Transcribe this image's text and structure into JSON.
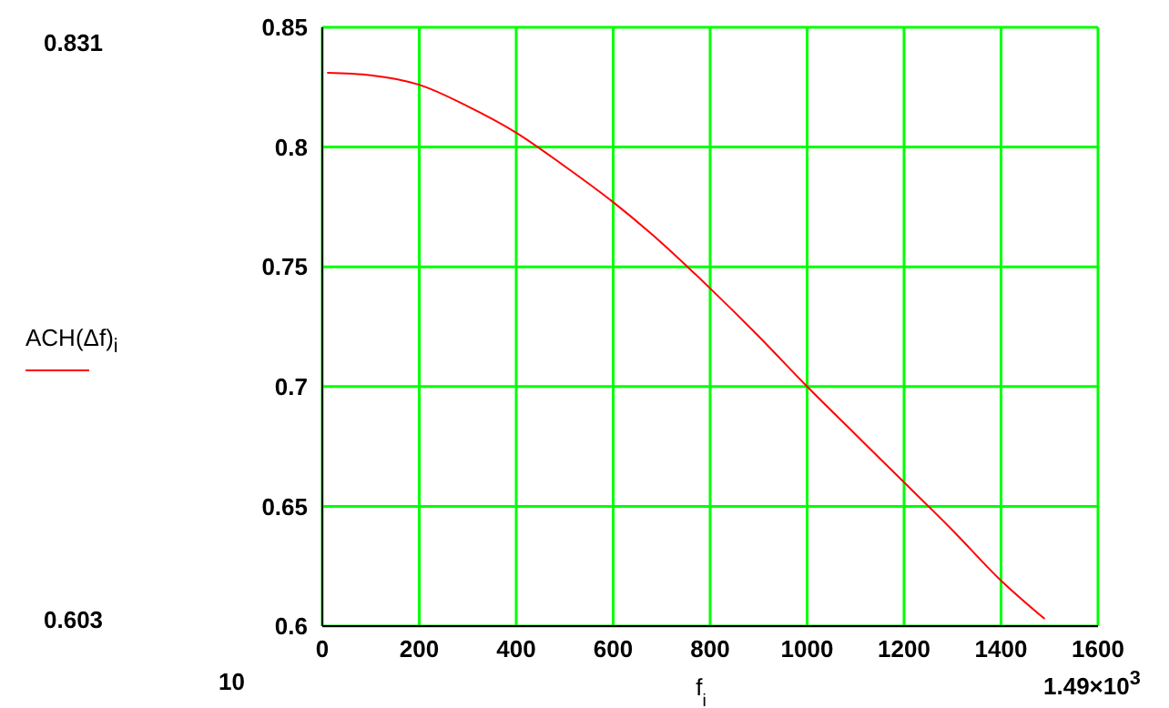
{
  "chart_data": {
    "type": "line",
    "xlabel": "f$_{i}$",
    "x": [
      10,
      100,
      200,
      300,
      400,
      500,
      600,
      700,
      800,
      900,
      1000,
      1100,
      1200,
      1300,
      1400,
      1490
    ],
    "series": [
      {
        "name": "ACH(Δf)$_{i}$",
        "color": "#ff0000",
        "values": [
          0.831,
          0.83,
          0.826,
          0.817,
          0.806,
          0.792,
          0.777,
          0.76,
          0.741,
          0.721,
          0.7,
          0.68,
          0.66,
          0.64,
          0.619,
          0.603
        ]
      }
    ],
    "xlim": [
      0,
      1600
    ],
    "xticks": [
      0,
      200,
      400,
      600,
      800,
      1000,
      1200,
      1400,
      1600
    ],
    "ylim": [
      0.6,
      0.85
    ],
    "yticks": [
      0.6,
      0.65,
      0.7,
      0.75,
      0.8,
      0.85
    ],
    "grid": true,
    "legend": "left",
    "marker": "none",
    "line_style": "solid",
    "annotations": [
      "0.831",
      "0.603",
      "10",
      "1.49×10$^{3}$"
    ]
  }
}
